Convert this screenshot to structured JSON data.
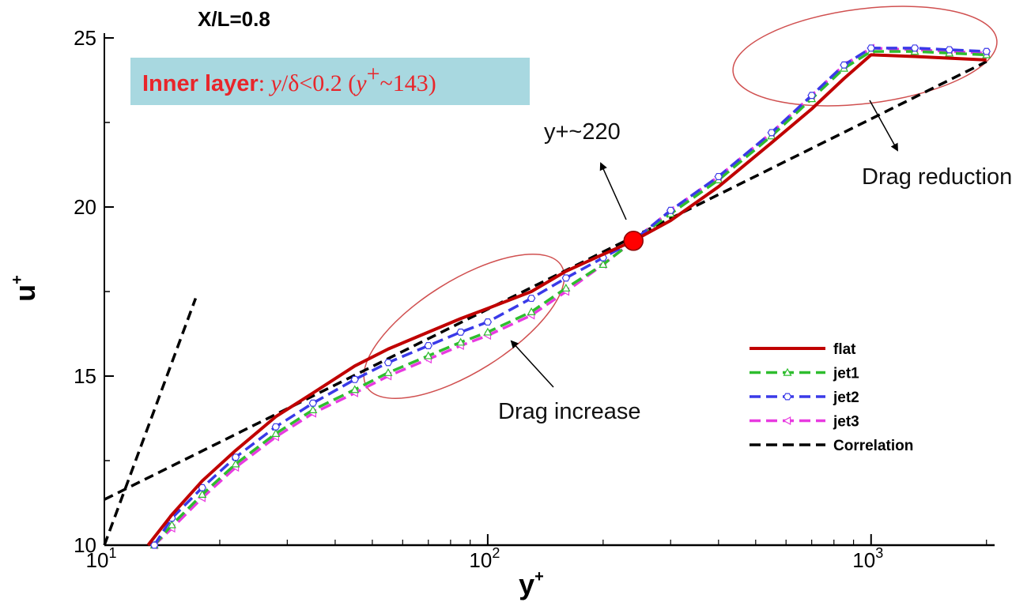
{
  "chart_data": {
    "type": "line",
    "title": "X/L=0.8",
    "xlabel": "y",
    "xlabel_sup": "+",
    "ylabel": "u",
    "ylabel_sup": "+",
    "x_scale": "log",
    "xlim": [
      10,
      2100
    ],
    "ylim": [
      10,
      25
    ],
    "x_ticks": [
      {
        "base": "10",
        "exp": "1"
      },
      {
        "base": "10",
        "exp": "2"
      },
      {
        "base": "10",
        "exp": "3"
      }
    ],
    "y_ticks": [
      "10",
      "15",
      "20",
      "25"
    ],
    "grid": false,
    "legend_position": "right",
    "series": [
      {
        "name": "flat",
        "color": "#c00000",
        "style": "solid",
        "marker": "none",
        "x": [
          13,
          15,
          18,
          22,
          28,
          35,
          45,
          55,
          70,
          85,
          100,
          130,
          160,
          200,
          240,
          300,
          400,
          550,
          700,
          850,
          1000,
          1300,
          1600,
          2000
        ],
        "y": [
          10.0,
          10.9,
          11.9,
          12.8,
          13.8,
          14.5,
          15.3,
          15.8,
          16.3,
          16.7,
          17.0,
          17.5,
          18.1,
          18.6,
          19.0,
          19.6,
          20.6,
          21.9,
          22.9,
          23.8,
          24.5,
          24.45,
          24.4,
          24.35
        ]
      },
      {
        "name": "jet1",
        "color": "#2ebd2e",
        "style": "dashed",
        "marker": "triangle-open",
        "x": [
          13.5,
          15,
          18,
          22,
          28,
          35,
          45,
          55,
          70,
          85,
          100,
          130,
          160,
          200,
          240,
          300,
          400,
          550,
          700,
          850,
          1000,
          1300,
          1600,
          2000
        ],
        "y": [
          10.0,
          10.6,
          11.5,
          12.4,
          13.3,
          14.0,
          14.6,
          15.1,
          15.6,
          16.0,
          16.3,
          16.9,
          17.6,
          18.3,
          19.0,
          19.8,
          20.8,
          22.1,
          23.2,
          24.1,
          24.6,
          24.6,
          24.55,
          24.5
        ]
      },
      {
        "name": "jet2",
        "color": "#3a3ae8",
        "style": "dashed",
        "marker": "hexagon-open",
        "x": [
          13.5,
          15,
          18,
          22,
          28,
          35,
          45,
          55,
          70,
          85,
          100,
          130,
          160,
          200,
          240,
          300,
          400,
          550,
          700,
          850,
          1000,
          1300,
          1600,
          2000
        ],
        "y": [
          10.0,
          10.8,
          11.7,
          12.6,
          13.5,
          14.2,
          14.9,
          15.4,
          15.9,
          16.3,
          16.6,
          17.3,
          17.9,
          18.5,
          19.0,
          19.9,
          20.9,
          22.2,
          23.3,
          24.2,
          24.7,
          24.7,
          24.65,
          24.6
        ]
      },
      {
        "name": "jet3",
        "color": "#e83ae0",
        "style": "dashed",
        "marker": "triangle-left-open",
        "x": [
          13.5,
          15,
          18,
          22,
          28,
          35,
          45,
          55,
          70,
          85,
          100,
          130,
          160,
          200,
          240,
          300,
          400,
          550,
          700,
          850,
          1000,
          1300,
          1600,
          2000
        ],
        "y": [
          10.0,
          10.5,
          11.4,
          12.3,
          13.2,
          13.9,
          14.5,
          15.0,
          15.5,
          15.9,
          16.2,
          16.8,
          17.5,
          18.3,
          19.0,
          19.9,
          20.9,
          22.2,
          23.3,
          24.2,
          24.7,
          24.65,
          24.6,
          24.55
        ]
      },
      {
        "name": "Correlation",
        "color": "#000000",
        "style": "dashed",
        "marker": "none",
        "x": [
          10,
          2000
        ],
        "y": [
          11.35,
          24.3
        ]
      }
    ],
    "viscous_sublayer": {
      "color": "#000000",
      "style": "dashed",
      "x": [
        10,
        17.3
      ],
      "y": [
        10,
        17.3
      ]
    },
    "marked_point": {
      "x": 240,
      "y": 19.0,
      "color": "#ff0000"
    },
    "annotations": {
      "inner_layer_bold": "Inner layer",
      "inner_layer_rest_a": ": ",
      "inner_layer_rest_b": "y",
      "inner_layer_rest_c": "/δ<0.2 (",
      "inner_layer_rest_d": "y",
      "inner_layer_rest_sup": "+",
      "inner_layer_rest_e": "~143)",
      "yplus_220": "y+~220",
      "drag_reduction": "Drag reduction",
      "drag_increase": "Drag increase"
    },
    "colors": {
      "highlight_box": "#a8d8e0",
      "ellipse": "#d05050"
    }
  }
}
